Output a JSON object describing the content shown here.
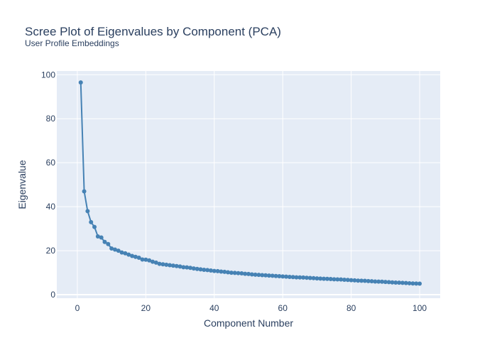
{
  "chart_data": {
    "type": "line",
    "title": "Scree Plot of Eigenvalues by Component (PCA)",
    "subtitle": "User Profile Embeddings",
    "xlabel": "Component Number",
    "ylabel": "Eigenvalue",
    "xlim": [
      -6.0,
      106.0
    ],
    "ylim": [
      -1.6,
      101.7
    ],
    "x_ticks": [
      0,
      20,
      40,
      60,
      80,
      100
    ],
    "y_ticks": [
      0,
      20,
      40,
      60,
      80,
      100
    ],
    "grid": true,
    "legend": "none",
    "colors": {
      "plot_bg": "#e5ecf6",
      "grid": "#ffffff",
      "line": "#4682b4",
      "text": "#2a3f5f"
    },
    "series": [
      {
        "x": [
          1,
          2,
          3,
          4,
          5,
          6,
          7,
          8,
          9,
          10,
          11,
          12,
          13,
          14,
          15,
          16,
          17,
          18,
          19,
          20,
          21,
          22,
          23,
          24,
          25,
          26,
          27,
          28,
          29,
          30,
          31,
          32,
          33,
          34,
          35,
          36,
          37,
          38,
          39,
          40,
          41,
          42,
          43,
          44,
          45,
          46,
          47,
          48,
          49,
          50,
          51,
          52,
          53,
          54,
          55,
          56,
          57,
          58,
          59,
          60,
          61,
          62,
          63,
          64,
          65,
          66,
          67,
          68,
          69,
          70,
          71,
          72,
          73,
          74,
          75,
          76,
          77,
          78,
          79,
          80,
          81,
          82,
          83,
          84,
          85,
          86,
          87,
          88,
          89,
          90,
          91,
          92,
          93,
          94,
          95,
          96,
          97,
          98,
          99,
          100
        ],
        "values": [
          96.5,
          47.0,
          38.0,
          33.0,
          30.8,
          26.5,
          26.0,
          24.0,
          23.0,
          21.0,
          20.5,
          20.0,
          19.2,
          18.8,
          18.2,
          17.6,
          17.2,
          16.8,
          16.0,
          15.9,
          15.6,
          15.0,
          14.6,
          14.0,
          13.8,
          13.6,
          13.4,
          13.2,
          13.0,
          12.8,
          12.5,
          12.4,
          12.2,
          11.9,
          11.7,
          11.5,
          11.3,
          11.2,
          11.0,
          10.8,
          10.7,
          10.5,
          10.4,
          10.2,
          10.0,
          9.9,
          9.8,
          9.7,
          9.5,
          9.4,
          9.2,
          9.1,
          9.0,
          8.9,
          8.8,
          8.7,
          8.6,
          8.5,
          8.4,
          8.3,
          8.2,
          8.1,
          8.0,
          7.9,
          7.85,
          7.8,
          7.7,
          7.6,
          7.5,
          7.4,
          7.3,
          7.25,
          7.2,
          7.1,
          7.0,
          6.95,
          6.9,
          6.8,
          6.7,
          6.6,
          6.5,
          6.4,
          6.35,
          6.3,
          6.2,
          6.1,
          6.0,
          5.95,
          5.9,
          5.8,
          5.7,
          5.6,
          5.5,
          5.45,
          5.4,
          5.3,
          5.2,
          5.1,
          5.05,
          5.0
        ]
      }
    ]
  }
}
